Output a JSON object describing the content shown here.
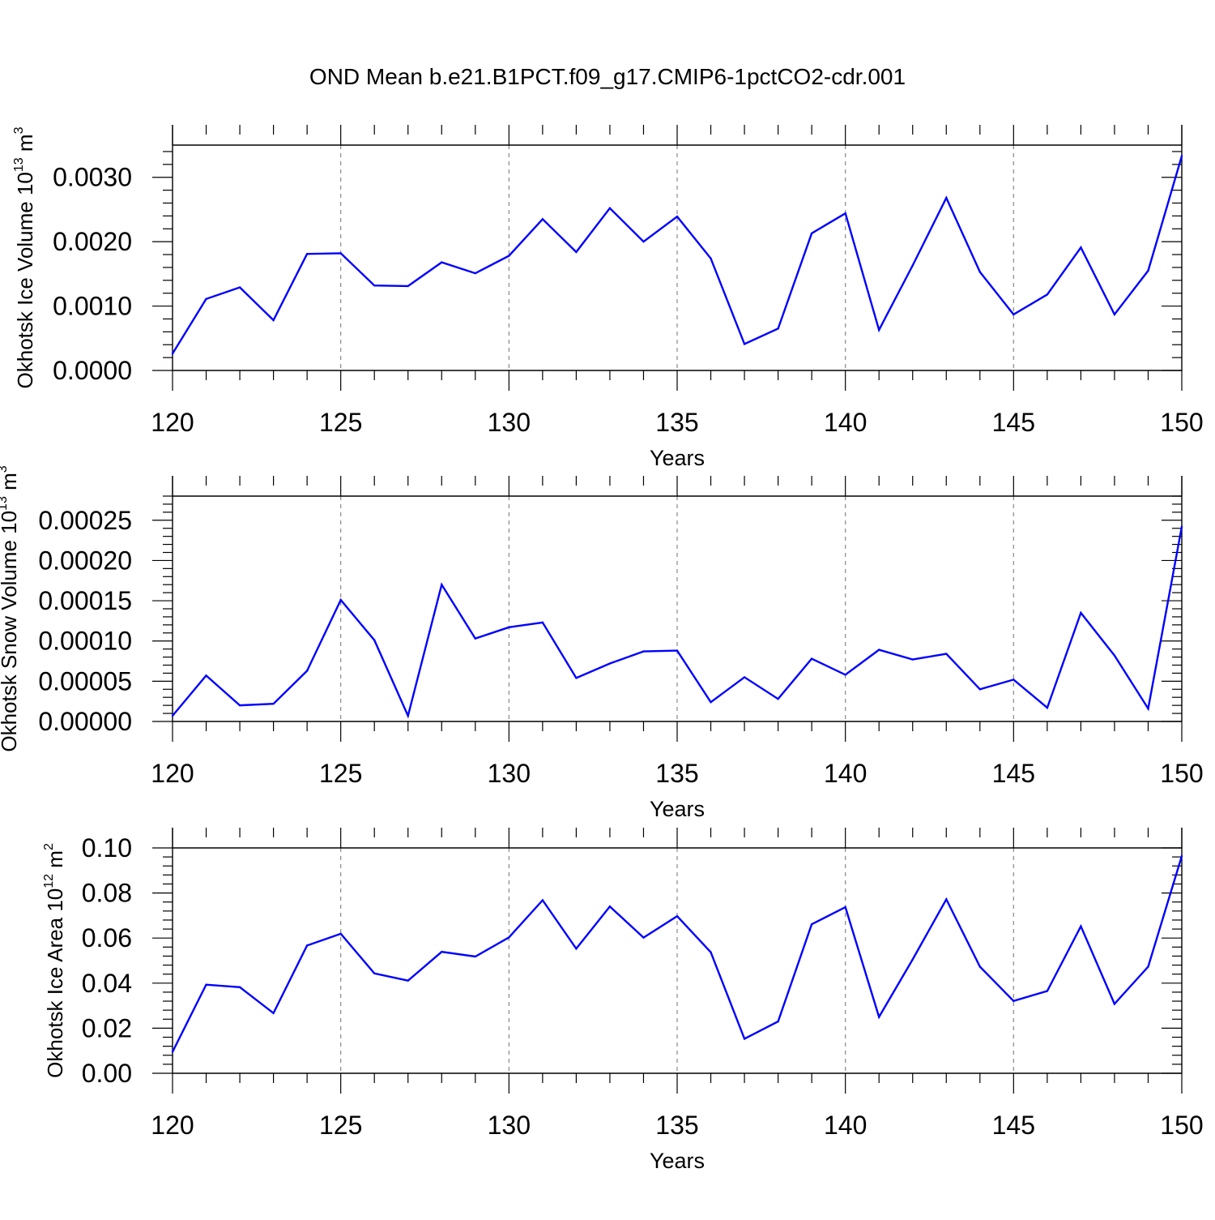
{
  "figure": {
    "title": "OND Mean b.e21.B1PCT.f09_g17.CMIP6-1pctCO2-cdr.001",
    "line_color": "#0000ff",
    "axis_color": "#000000",
    "grid_color": "#888888"
  },
  "chart_data": [
    {
      "type": "line",
      "xlabel": "Years",
      "ylabel_main": "Okhotsk Ice Volume 10",
      "ylabel_sup": "13",
      "ylabel_unit": " m",
      "ylabel_unit_sup": "3",
      "xlim": [
        120,
        150
      ],
      "ylim": [
        0,
        0.0035
      ],
      "xticks": [
        120,
        125,
        130,
        135,
        140,
        145,
        150
      ],
      "xtick_labels": [
        "120",
        "125",
        "130",
        "135",
        "140",
        "145",
        "150"
      ],
      "yticks": [
        0,
        0.001,
        0.002,
        0.003
      ],
      "ytick_labels": [
        "0.0000",
        "0.0010",
        "0.0020",
        "0.0030"
      ],
      "yminor_step": 0.0002,
      "grid": "vertical dashed at major x ticks",
      "x": [
        120,
        121,
        122,
        123,
        124,
        125,
        126,
        127,
        128,
        129,
        130,
        131,
        132,
        133,
        134,
        135,
        136,
        137,
        138,
        139,
        140,
        141,
        142,
        143,
        144,
        145,
        146,
        147,
        148,
        149,
        150
      ],
      "series": [
        {
          "values": [
            0.00026,
            0.00111,
            0.00129,
            0.00078,
            0.00181,
            0.00182,
            0.00132,
            0.00131,
            0.00168,
            0.00151,
            0.00178,
            0.00235,
            0.00184,
            0.00252,
            0.002,
            0.00239,
            0.00174,
            0.00041,
            0.00065,
            0.00213,
            0.00244,
            0.00063,
            0.00163,
            0.00268,
            0.00153,
            0.00087,
            0.00118,
            0.00191,
            0.00087,
            0.00155,
            0.00333
          ]
        }
      ]
    },
    {
      "type": "line",
      "xlabel": "Years",
      "ylabel_main": "Okhotsk Snow Volume 10",
      "ylabel_sup": "13",
      "ylabel_unit": " m",
      "ylabel_unit_sup": "3",
      "xlim": [
        120,
        150
      ],
      "ylim": [
        0,
        0.00028
      ],
      "xticks": [
        120,
        125,
        130,
        135,
        140,
        145,
        150
      ],
      "xtick_labels": [
        "120",
        "125",
        "130",
        "135",
        "140",
        "145",
        "150"
      ],
      "yticks": [
        0,
        5e-05,
        0.0001,
        0.00015,
        0.0002,
        0.00025
      ],
      "ytick_labels": [
        "0.00000",
        "0.00005",
        "0.00010",
        "0.00015",
        "0.00020",
        "0.00025"
      ],
      "yminor_step": 1e-05,
      "grid": "vertical dashed at major x ticks",
      "x": [
        120,
        121,
        122,
        123,
        124,
        125,
        126,
        127,
        128,
        129,
        130,
        131,
        132,
        133,
        134,
        135,
        136,
        137,
        138,
        139,
        140,
        141,
        142,
        143,
        144,
        145,
        146,
        147,
        148,
        149,
        150
      ],
      "series": [
        {
          "values": [
            7e-06,
            5.7e-05,
            2e-05,
            2.2e-05,
            6.3e-05,
            0.000151,
            0.000101,
            7e-06,
            0.00017,
            0.000103,
            0.000117,
            0.000123,
            5.4e-05,
            7.2e-05,
            8.7e-05,
            8.8e-05,
            2.4e-05,
            5.5e-05,
            2.8e-05,
            7.8e-05,
            5.8e-05,
            8.9e-05,
            7.7e-05,
            8.4e-05,
            4e-05,
            5.2e-05,
            1.7e-05,
            0.000135,
            8.2e-05,
            1.6e-05,
            0.000242
          ]
        }
      ]
    },
    {
      "type": "line",
      "xlabel": "Years",
      "ylabel_main": "Okhotsk Ice Area 10",
      "ylabel_sup": "12",
      "ylabel_unit": " m",
      "ylabel_unit_sup": "2",
      "xlim": [
        120,
        150
      ],
      "ylim": [
        0,
        0.1
      ],
      "xticks": [
        120,
        125,
        130,
        135,
        140,
        145,
        150
      ],
      "xtick_labels": [
        "120",
        "125",
        "130",
        "135",
        "140",
        "145",
        "150"
      ],
      "yticks": [
        0,
        0.02,
        0.04,
        0.06,
        0.08,
        0.1
      ],
      "ytick_labels": [
        "0.00",
        "0.02",
        "0.04",
        "0.06",
        "0.08",
        "0.10"
      ],
      "yminor_step": 0.004,
      "grid": "vertical dashed at major x ticks",
      "x": [
        120,
        121,
        122,
        123,
        124,
        125,
        126,
        127,
        128,
        129,
        130,
        131,
        132,
        133,
        134,
        135,
        136,
        137,
        138,
        139,
        140,
        141,
        142,
        143,
        144,
        145,
        146,
        147,
        148,
        149,
        150
      ],
      "series": [
        {
          "values": [
            0.0095,
            0.0393,
            0.0382,
            0.0267,
            0.0567,
            0.0619,
            0.0443,
            0.0411,
            0.0539,
            0.0518,
            0.0603,
            0.0768,
            0.0553,
            0.074,
            0.0602,
            0.0697,
            0.0537,
            0.0153,
            0.023,
            0.0661,
            0.0737,
            0.025,
            0.0505,
            0.0772,
            0.0473,
            0.0321,
            0.0365,
            0.0652,
            0.0308,
            0.0473,
            0.0964
          ]
        }
      ]
    }
  ]
}
